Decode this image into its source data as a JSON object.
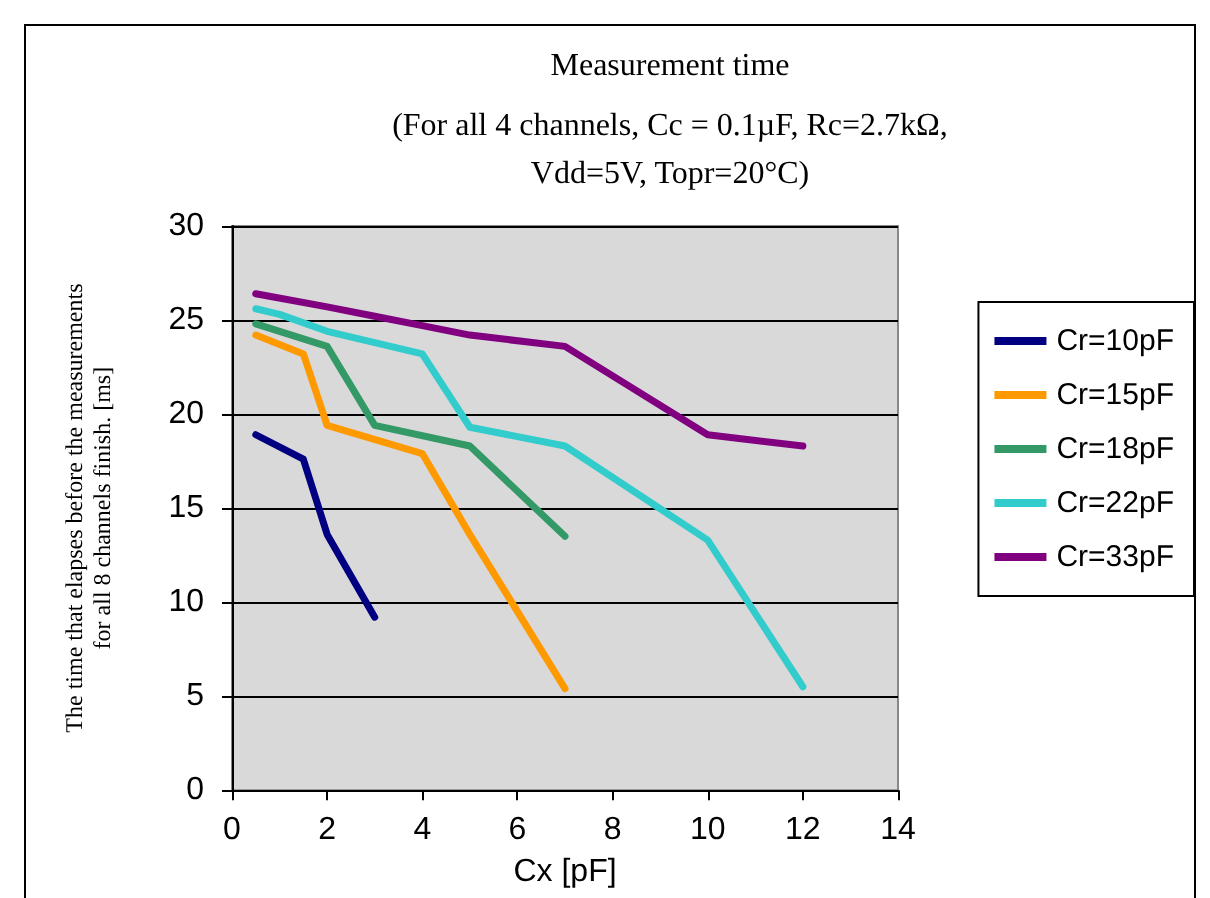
{
  "chart_data": {
    "type": "line",
    "title": "Measurement time",
    "subtitle": "(For all 4 channels, Cc = 0.1µF, Rc=2.7kΩ,\nVdd=5V, Topr=20°C)",
    "xlabel": "Cx [pF]",
    "ylabel": "The time that elapses before the measurements\nfor all 8 channels finish. [ms]",
    "xlim": [
      0,
      14
    ],
    "xticks": [
      0,
      2,
      4,
      6,
      8,
      10,
      12,
      14
    ],
    "ylim": [
      0,
      30
    ],
    "yticks": [
      0,
      5,
      10,
      15,
      20,
      25,
      30
    ],
    "grid": "y",
    "legend": "right",
    "marker": "none",
    "line_style": "solid",
    "series": [
      {
        "name": "Cr=10pF",
        "color": "#000080",
        "x": [
          0.5,
          1.5,
          2,
          3
        ],
        "values": [
          18.9,
          17.6,
          13.6,
          9.2
        ]
      },
      {
        "name": "Cr=15pF",
        "color": "#ff9900",
        "x": [
          0.5,
          1.5,
          2,
          4,
          5,
          7
        ],
        "values": [
          24.2,
          23.2,
          19.4,
          17.9,
          13.6,
          5.4
        ]
      },
      {
        "name": "Cr=18pF",
        "color": "#339966",
        "x": [
          0.5,
          2,
          3,
          5,
          7
        ],
        "values": [
          24.8,
          23.6,
          19.4,
          18.3,
          13.5
        ]
      },
      {
        "name": "Cr=22pF",
        "color": "#33cccc",
        "x": [
          0.5,
          1,
          2,
          4,
          5,
          7,
          10,
          12
        ],
        "values": [
          25.6,
          25.3,
          24.4,
          23.2,
          19.3,
          18.3,
          13.3,
          5.5
        ]
      },
      {
        "name": "Cr=33pF",
        "color": "#800080",
        "x": [
          0.5,
          2,
          3,
          4,
          5,
          7,
          10,
          12
        ],
        "values": [
          26.4,
          25.7,
          25.2,
          24.7,
          24.2,
          23.6,
          18.9,
          18.3
        ]
      }
    ]
  }
}
